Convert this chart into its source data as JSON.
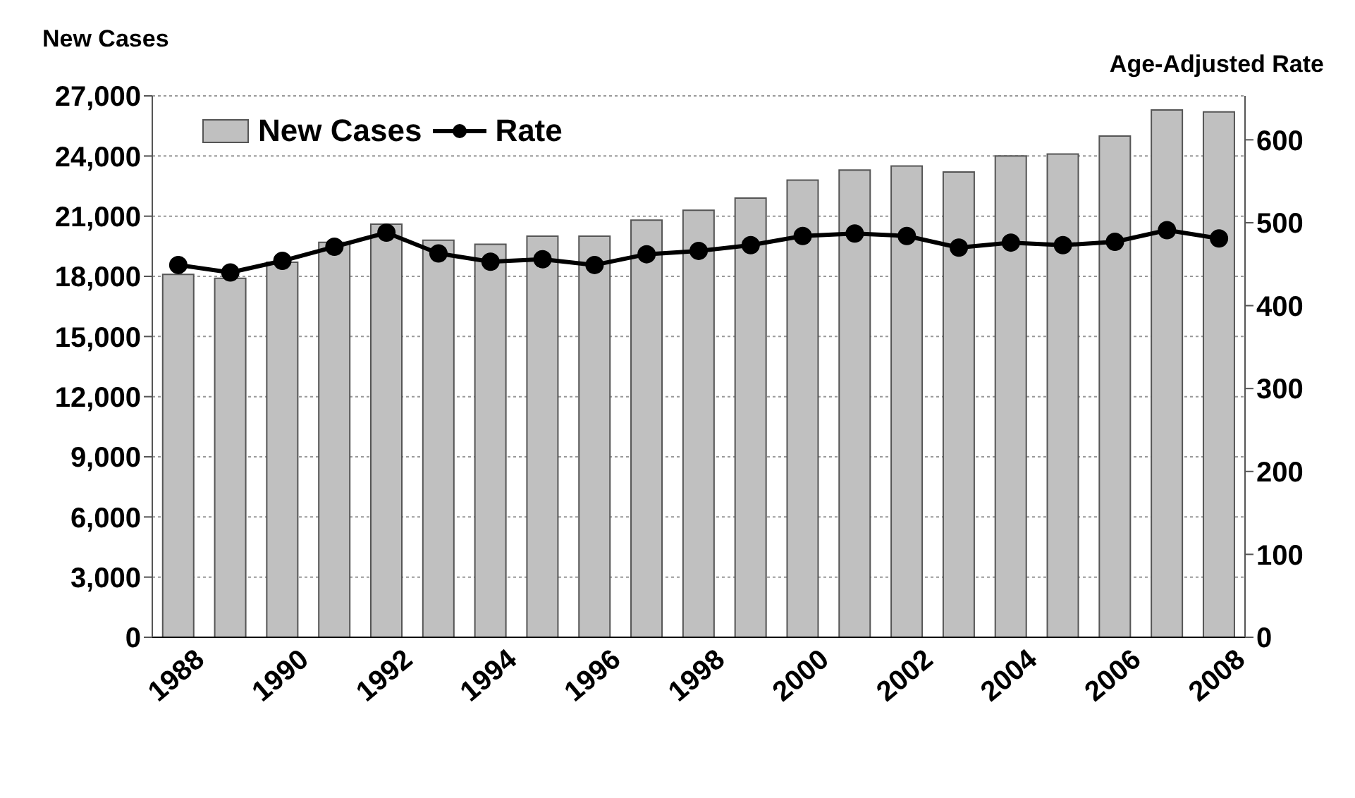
{
  "chart_data": {
    "type": "bar",
    "ylabel": "New Cases",
    "y2label": "Age-Adjusted Rate",
    "categories": [
      "1988",
      null,
      "1990",
      null,
      "1992",
      null,
      "1994",
      null,
      "1996",
      null,
      "1998",
      null,
      "2000",
      null,
      "2002",
      null,
      "2004",
      null,
      "2006",
      null,
      "2008"
    ],
    "series": [
      {
        "name": "New Cases",
        "color": "#c0c0c0",
        "values": [
          18100,
          17900,
          18700,
          19700,
          20600,
          19800,
          19600,
          20000,
          20000,
          20800,
          21300,
          21900,
          22800,
          23300,
          23500,
          23200,
          24000,
          24100,
          25000,
          26300,
          26200
        ]
      },
      {
        "name": "Rate",
        "type": "line",
        "axis": "y2",
        "color": "#000000",
        "marker": "circle",
        "values": [
          449,
          440,
          454,
          471,
          488,
          463,
          453,
          456,
          449,
          462,
          466,
          473,
          484,
          487,
          484,
          470,
          476,
          473,
          477,
          491,
          481
        ]
      }
    ],
    "ylim": [
      0,
      27000
    ],
    "yticks": [
      0,
      {
        "value": 3000,
        "label": "3,000"
      },
      {
        "value": 6000,
        "label": "6,000"
      },
      {
        "value": 9000,
        "label": "9,000"
      },
      {
        "value": 12000,
        "label": "12,000"
      },
      {
        "value": 15000,
        "label": "15,000"
      },
      {
        "value": 18000,
        "label": "18,000"
      },
      {
        "value": 21000,
        "label": "21,000"
      },
      {
        "value": 24000,
        "label": "24,000"
      },
      {
        "value": 27000,
        "label": "27,000"
      }
    ],
    "y2lim": [
      0,
      653
    ],
    "y2ticks": [
      0,
      100,
      200,
      300,
      400,
      500,
      600
    ],
    "grid": "y",
    "legend": "top left"
  }
}
